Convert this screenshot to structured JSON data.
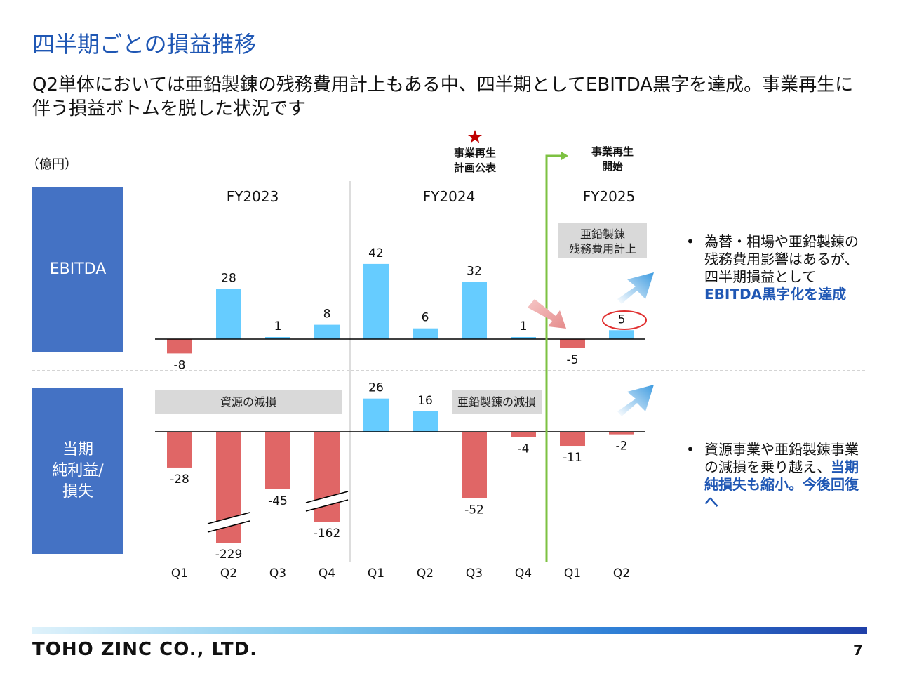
{
  "title": "四半期ごとの損益推移",
  "subtitle": "Q2単体においては亜鉛製錬の残務費用計上もある中、四半期としてEBITDA黒字を達成。事業再生に伴う損益ボトムを脱した状況です",
  "unit_label": "（億円）",
  "row_labels": {
    "ebitda": "EBITDA",
    "net": "当期\n純利益/\n損失"
  },
  "events": {
    "plan": {
      "icon": "star-icon",
      "line1": "事業再生",
      "line2": "計画公表"
    },
    "start": {
      "line1": "事業再生",
      "line2": "開始"
    }
  },
  "bullets": {
    "b1": {
      "text": "為替・相場や亜鉛製錬の残務費用影響はあるが、四半期損益として",
      "highlight": "EBITDA黒字化を達成"
    },
    "b2": {
      "text": "資源事業や亜鉛製錬事業の減損を乗り越え、",
      "highlight": "当期純損失も縮小。今後回復へ"
    },
    "marker": "•"
  },
  "footer": {
    "company": "TOHO ZINC CO., LTD.",
    "page": "7"
  },
  "colors": {
    "positive": "#66ccff",
    "negative": "#e06666",
    "accent": "#1f57b4",
    "event_line": "#7dc142",
    "star": "#c00000",
    "label_box": "#4472c4"
  },
  "chart_data": {
    "type": "bar",
    "fiscal_years": [
      "FY2023",
      "FY2024",
      "FY2025"
    ],
    "categories": [
      "Q1",
      "Q2",
      "Q3",
      "Q4",
      "Q1",
      "Q2",
      "Q3",
      "Q4",
      "Q1",
      "Q2"
    ],
    "series": [
      {
        "name": "EBITDA",
        "values": [
          -8,
          28,
          1,
          8,
          42,
          6,
          32,
          1,
          -5,
          5
        ]
      },
      {
        "name": "当期純利益/損失",
        "values": [
          -28,
          -229,
          -45,
          -162,
          26,
          16,
          -52,
          -4,
          -11,
          -2
        ]
      }
    ],
    "axis_breaks": [
      "Q2 FY2023 純利益",
      "Q4 FY2023 純利益"
    ],
    "annotations": {
      "impairment_resource": "資源の減損",
      "impairment_zinc": "亜鉛製錬の減損",
      "zinc_costs": [
        "亜鉛製錬",
        "残務費用計上"
      ]
    }
  }
}
